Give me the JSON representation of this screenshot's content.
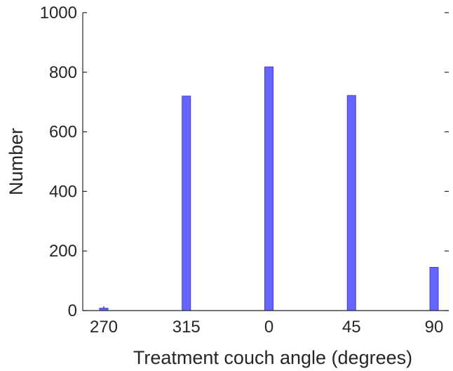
{
  "chart_data": {
    "type": "bar",
    "categories": [
      "270",
      "315",
      "0",
      "45",
      "90"
    ],
    "values": [
      8,
      720,
      818,
      722,
      145
    ],
    "xlabel": "Treatment couch angle (degrees)",
    "ylabel": "Number",
    "ylim": [
      0,
      1000
    ],
    "yticks": [
      "0",
      "200",
      "400",
      "600",
      "800",
      "1000"
    ],
    "grid": false,
    "bar_color": "#6666ff",
    "bar_edge_color": "#3f3fd6"
  }
}
